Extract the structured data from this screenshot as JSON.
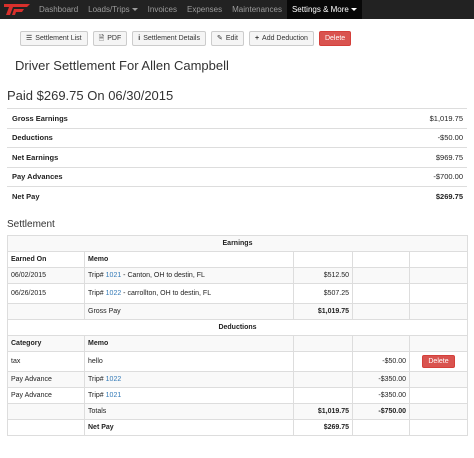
{
  "nav": {
    "items": [
      "Dashboard",
      "Loads/Trips",
      "Invoices",
      "Expenses",
      "Maintenances",
      "Settings & More"
    ],
    "active_index": 5,
    "colors": {
      "bar": "#222222",
      "active": "#080808",
      "logo": "#d9302c"
    }
  },
  "toolbar": {
    "settlement_list": "Settlement List",
    "pdf": "PDF",
    "settlement_details": "Settlement Details",
    "edit": "Edit",
    "add_deduction": "Add Deduction",
    "delete": "Delete"
  },
  "page_title": "Driver Settlement For Allen Campbell",
  "paid_title": "Paid $269.75 On 06/30/2015",
  "summary": [
    {
      "label": "Gross Earnings",
      "value": "$1,019.75"
    },
    {
      "label": "Deductions",
      "value": "-$50.00"
    },
    {
      "label": "Net Earnings",
      "value": "$969.75"
    },
    {
      "label": "Pay Advances",
      "value": "-$700.00"
    },
    {
      "label": "Net Pay",
      "value": "$269.75"
    }
  ],
  "settlement": {
    "title": "Settlement",
    "earnings_header": "Earnings",
    "earnings_columns": [
      "Earned On",
      "Memo"
    ],
    "earnings_rows": [
      {
        "date": "06/02/2015",
        "trip_prefix": "Trip#",
        "trip_no": "1021",
        "route": " - Canton, OH to destin, FL",
        "amount": "$512.50"
      },
      {
        "date": "06/26/2015",
        "trip_prefix": "Trip#",
        "trip_no": "1022",
        "route": " - carrollton, OH to destin, FL",
        "amount": "$507.25"
      }
    ],
    "gross_pay_label": "Gross Pay",
    "gross_pay_value": "$1,019.75",
    "deductions_header": "Deductions",
    "deductions_columns": [
      "Category",
      "Memo"
    ],
    "deduction_rows": [
      {
        "category": "tax",
        "memo": "hello",
        "amount": "-$50.00",
        "action": "Delete"
      },
      {
        "category": "Pay Advance",
        "trip_prefix": "Trip#",
        "trip_no": "1022",
        "amount": "-$350.00"
      },
      {
        "category": "Pay Advance",
        "trip_prefix": "Trip#",
        "trip_no": "1021",
        "amount": "-$350.00"
      }
    ],
    "totals_label": "Totals",
    "totals_earn": "$1,019.75",
    "totals_ded": "-$750.00",
    "net_pay_label": "Net Pay",
    "net_pay_value": "$269.75"
  }
}
